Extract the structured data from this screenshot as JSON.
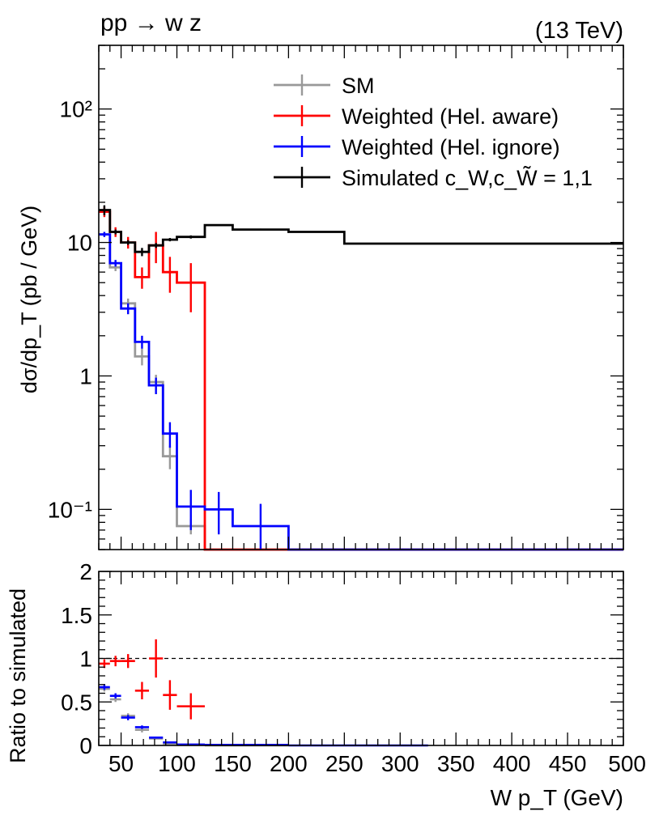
{
  "chart_data": [
    {
      "panel": "main",
      "type": "line",
      "style": "step histogram with error bars",
      "process_label": "pp → w z",
      "energy_label": "(13 TeV)",
      "xlabel": "W p_T (GeV)",
      "ylabel": "dσ/dp_T (pb / GeV)",
      "yscale": "log",
      "xlim": [
        30,
        500
      ],
      "ylim": [
        0.05,
        300
      ],
      "y_tick_labels": [
        "10⁻¹",
        "1",
        "10",
        "10²"
      ],
      "y_tick_values": [
        0.1,
        1,
        10,
        100
      ],
      "legend_position": "top-center",
      "bin_edges": [
        30,
        40,
        50,
        62.5,
        75,
        87.5,
        100,
        125,
        150,
        200,
        250,
        325,
        500
      ],
      "series": [
        {
          "name": "Simulated",
          "legend": "Simulated  c_W,c_W̃ = 1,1",
          "color": "#000000",
          "values": [
            17.5,
            12.0,
            10.0,
            8.5,
            9.5,
            10.5,
            11.0,
            13.5,
            12.5,
            12.0,
            9.8,
            9.8
          ],
          "errors": [
            1.5,
            0.5,
            0.4,
            0.6,
            0.4,
            0.3,
            0.3,
            0.2,
            0.2,
            0.1,
            0.1,
            0.05
          ]
        },
        {
          "name": "SM",
          "legend": "SM",
          "color": "#999999",
          "values": [
            11.5,
            6.5,
            3.5,
            1.4,
            0.9,
            0.25,
            0.075,
            null,
            null,
            null,
            null,
            null
          ],
          "errors": [
            0.5,
            0.4,
            0.3,
            0.2,
            0.12,
            0.05,
            0.01,
            null,
            null,
            null,
            null,
            null
          ]
        },
        {
          "name": "Weighted (Hel. aware)",
          "legend": "Weighted (Hel. aware)",
          "color": "#ff0000",
          "values": [
            17.0,
            12.0,
            10.0,
            5.5,
            9.5,
            6.0,
            5.0,
            null,
            null,
            null,
            null,
            null
          ],
          "errors": [
            1.5,
            1.0,
            1.0,
            1.0,
            2.5,
            1.8,
            2.0,
            null,
            null,
            null,
            null,
            null
          ]
        },
        {
          "name": "Weighted (Hel. ignore)",
          "legend": "Weighted (Hel. ignore)",
          "color": "#0000ff",
          "values": [
            11.5,
            7.0,
            3.2,
            1.8,
            0.85,
            0.37,
            0.105,
            0.1,
            0.075,
            null,
            null,
            null
          ],
          "errors": [
            0.5,
            0.4,
            0.3,
            0.2,
            0.12,
            0.08,
            0.035,
            0.035,
            0.035,
            null,
            null,
            null
          ]
        }
      ]
    },
    {
      "panel": "ratio",
      "type": "scatter",
      "style": "ratio points with error bars",
      "xlabel": "W p_T (GeV)",
      "ylabel": "Ratio to simulated",
      "ylim": [
        0,
        2
      ],
      "xlim": [
        30,
        500
      ],
      "x_tick_labels": [
        "50",
        "100",
        "150",
        "200",
        "250",
        "300",
        "350",
        "400",
        "450",
        "500"
      ],
      "x_tick_values": [
        50,
        100,
        150,
        200,
        250,
        300,
        350,
        400,
        450,
        500
      ],
      "y_tick_labels": [
        "0",
        "0.5",
        "1",
        "1.5",
        "2"
      ],
      "y_tick_values": [
        0,
        0.5,
        1,
        1.5,
        2
      ],
      "reference_line": 1,
      "bin_edges": [
        30,
        40,
        50,
        62.5,
        75,
        87.5,
        100,
        125,
        150,
        200,
        250,
        325,
        500
      ],
      "series": [
        {
          "name": "SM",
          "color": "#999999",
          "values": [
            0.65,
            0.53,
            0.34,
            0.18,
            0.08,
            0.02,
            0.01,
            0,
            0,
            null,
            null,
            null
          ],
          "errors": [
            0.03,
            0.03,
            0.03,
            0.03,
            0.01,
            0.005,
            0.003,
            0,
            0,
            null,
            null,
            null
          ]
        },
        {
          "name": "Weighted (Hel. aware)",
          "color": "#ff0000",
          "values": [
            0.94,
            0.97,
            0.97,
            0.63,
            1.0,
            0.58,
            0.45,
            null,
            null,
            null,
            null,
            null
          ],
          "errors": [
            0.05,
            0.06,
            0.08,
            0.1,
            0.22,
            0.17,
            0.15,
            null,
            null,
            null,
            null,
            null
          ]
        },
        {
          "name": "Weighted (Hel. ignore)",
          "color": "#0000ff",
          "values": [
            0.67,
            0.57,
            0.32,
            0.21,
            0.09,
            0.035,
            0.01,
            0.007,
            0.006,
            0,
            0,
            null
          ],
          "errors": [
            0.03,
            0.03,
            0.03,
            0.02,
            0.01,
            0.008,
            0.003,
            0.003,
            0.003,
            0,
            0,
            null
          ]
        }
      ]
    }
  ]
}
